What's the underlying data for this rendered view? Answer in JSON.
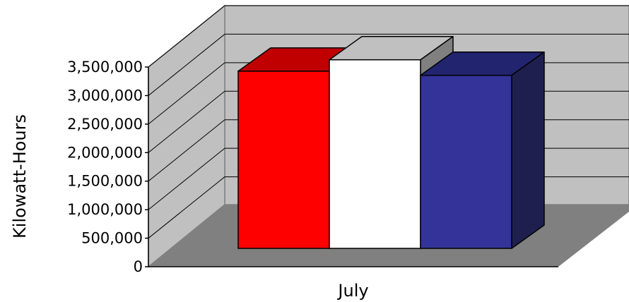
{
  "chart_data": {
    "type": "bar",
    "categories": [
      "July"
    ],
    "series": [
      {
        "values": [
          3420000
        ],
        "color": "#ff0000",
        "top_color": "#c00000",
        "side_color": "#c00000"
      },
      {
        "values": [
          3640000
        ],
        "color": "#ffffff",
        "top_color": "#c0c0c0",
        "side_color": "#808080"
      },
      {
        "values": [
          3340000
        ],
        "color": "#333399",
        "top_color": "#232470",
        "side_color": "#1f1f4f"
      }
    ],
    "title": "",
    "xlabel": "July",
    "ylabel": "Kilowatt-Hours",
    "ylim": [
      0,
      3500000
    ],
    "yticks": [
      "0",
      "500,000",
      "1,000,000",
      "1,500,000",
      "2,000,000",
      "2,500,000",
      "3,000,000",
      "3,500,000"
    ],
    "grid": true,
    "legend": "none",
    "style": "3d",
    "colors": {
      "wall": "#c0c0c0",
      "floor": "#808080",
      "gridline": "#000000"
    }
  }
}
